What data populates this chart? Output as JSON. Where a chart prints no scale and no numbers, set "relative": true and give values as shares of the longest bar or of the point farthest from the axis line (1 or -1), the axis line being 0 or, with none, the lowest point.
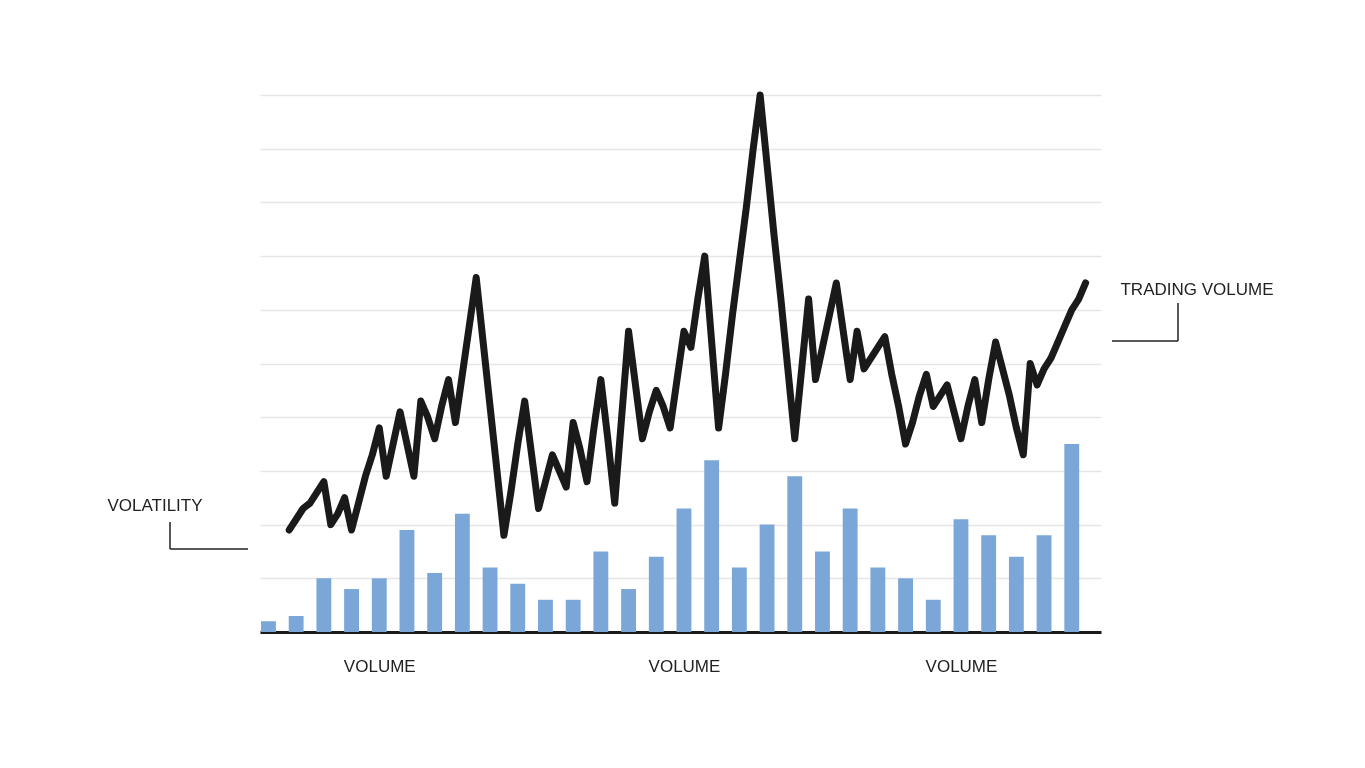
{
  "chart_data": {
    "type": "bar",
    "relative": true,
    "grid": "y",
    "categories": [
      null,
      null,
      null,
      null,
      null,
      null,
      null,
      null,
      null,
      null,
      null,
      null,
      null,
      null,
      null,
      null,
      "VOLUME",
      null,
      null,
      null,
      null,
      null,
      null,
      null,
      null,
      null,
      null,
      null,
      null,
      null,
      null,
      null,
      null,
      null,
      null,
      null,
      null,
      null,
      null,
      null,
      null,
      null,
      null,
      null,
      null,
      null,
      null,
      null,
      null,
      null,
      null,
      null,
      null,
      null,
      null,
      null,
      null,
      null,
      null,
      null,
      "VOLUME",
      null,
      null,
      null,
      null,
      null,
      null,
      null,
      null,
      null,
      null,
      null,
      null,
      null,
      null,
      null,
      null,
      null,
      null,
      null,
      null,
      null,
      null,
      null,
      null,
      null,
      null,
      null,
      null,
      null,
      null,
      null,
      null,
      null,
      null,
      null,
      null,
      null,
      null,
      null,
      "VOLUME",
      null,
      null,
      null,
      null,
      null,
      null,
      null,
      null,
      null,
      null,
      null,
      null,
      null,
      null,
      null,
      null,
      null,
      null,
      null
    ],
    "series": [
      {
        "color": "#7ba7d8",
        "values": [
          0.02,
          null,
          null,
          null,
          0.03,
          null,
          null,
          null,
          0.1,
          null,
          null,
          null,
          0.08,
          null,
          null,
          null,
          0.1,
          null,
          null,
          null,
          0.19,
          null,
          null,
          null,
          0.11,
          null,
          null,
          null,
          0.22,
          null,
          null,
          null,
          0.12,
          null,
          null,
          null,
          0.09,
          null,
          null,
          null,
          0.06,
          null,
          null,
          null,
          0.06,
          null,
          null,
          null,
          0.15,
          null,
          null,
          null,
          0.08,
          null,
          null,
          null,
          0.14,
          null,
          null,
          null,
          0.23,
          null,
          null,
          null,
          0.32,
          null,
          null,
          null,
          0.12,
          null,
          null,
          null,
          0.2,
          null,
          null,
          null,
          0.29,
          null,
          null,
          null,
          0.15,
          null,
          null,
          null,
          0.23,
          null,
          null,
          null,
          0.12,
          null,
          null,
          null,
          0.1,
          null,
          null,
          null,
          0.06,
          null,
          null,
          null,
          0.21,
          null,
          null,
          null,
          0.18,
          null,
          null,
          null,
          0.14,
          null,
          null,
          null,
          0.18,
          null,
          null,
          null,
          0.35,
          null,
          null,
          null
        ]
      },
      {
        "type": "line",
        "color": "#1a1a1a",
        "values": [
          null,
          null,
          null,
          0.19,
          0.21,
          0.23,
          0.24,
          0.26,
          0.28,
          0.2,
          0.22,
          0.25,
          0.19,
          0.24,
          0.29,
          0.33,
          0.38,
          0.29,
          0.35,
          0.41,
          0.35,
          0.29,
          0.43,
          0.4,
          0.36,
          0.42,
          0.47,
          0.39,
          0.48,
          0.57,
          0.66,
          0.54,
          0.42,
          0.3,
          0.18,
          0.26,
          0.35,
          0.43,
          0.33,
          0.23,
          0.28,
          0.33,
          0.3,
          0.27,
          0.39,
          0.34,
          0.28,
          0.38,
          0.47,
          0.36,
          0.24,
          0.4,
          0.56,
          0.46,
          0.36,
          0.41,
          0.45,
          0.42,
          0.38,
          0.47,
          0.56,
          0.53,
          0.62,
          0.7,
          0.54,
          0.38,
          0.48,
          0.59,
          0.69,
          0.79,
          0.9,
          1,
          0.87,
          0.74,
          0.62,
          0.49,
          0.36,
          0.49,
          0.62,
          0.47,
          0.53,
          0.59,
          0.65,
          0.56,
          0.47,
          0.56,
          0.49,
          0.51,
          0.53,
          0.55,
          0.48,
          0.42,
          0.35,
          0.39,
          0.44,
          0.48,
          0.42,
          0.44,
          0.46,
          0.41,
          0.36,
          0.42,
          0.47,
          0.39,
          0.47,
          0.54,
          0.49,
          0.44,
          0.38,
          0.33,
          0.5,
          0.46,
          0.49,
          0.51,
          0.54,
          0.57,
          0.6,
          0.62,
          0.65,
          null
        ]
      }
    ],
    "annotations": [
      "VOLATILITY",
      "TRADING VOLUME"
    ]
  }
}
